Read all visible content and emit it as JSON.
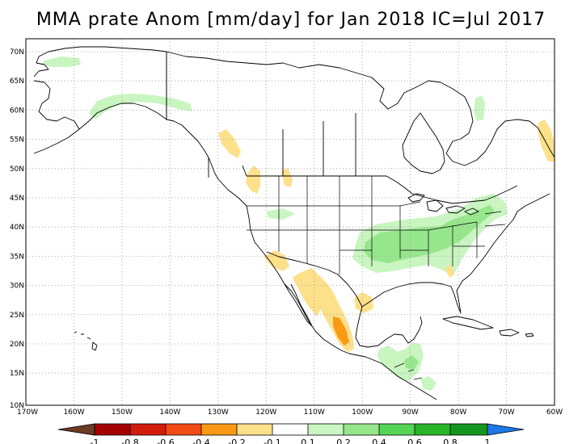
{
  "title": "MMA prate Anom [mm/day] for Jan 2018 IC=Jul 2017",
  "variable": "prate",
  "units": "mm/day",
  "lat_labels": [
    "70N",
    "65N",
    "60N",
    "55N",
    "50N",
    "45N",
    "40N",
    "35N",
    "30N",
    "25N",
    "20N",
    "15N",
    "10N"
  ],
  "lon_labels": [
    "170W",
    "160W",
    "150W",
    "140W",
    "130W",
    "120W",
    "110W",
    "100W",
    "90W",
    "80W",
    "70W",
    "60W"
  ],
  "colorbar": {
    "labels": [
      "-1",
      "-0.8",
      "-0.6",
      "-0.4",
      "-0.2",
      "-0.1",
      "0.1",
      "0.2",
      "0.4",
      "0.6",
      "0.8",
      "1"
    ],
    "colors": [
      "#6b3b23",
      "#a50000",
      "#d41c0c",
      "#f24a14",
      "#fa9a14",
      "#fde08a",
      "#ffffff",
      "#c8f5c0",
      "#96e68c",
      "#55d455",
      "#28b428",
      "#14961e",
      "#1e78e6"
    ]
  },
  "colors": {
    "land_line": "#000000",
    "grid": "#999999",
    "frame": "#000000"
  }
}
